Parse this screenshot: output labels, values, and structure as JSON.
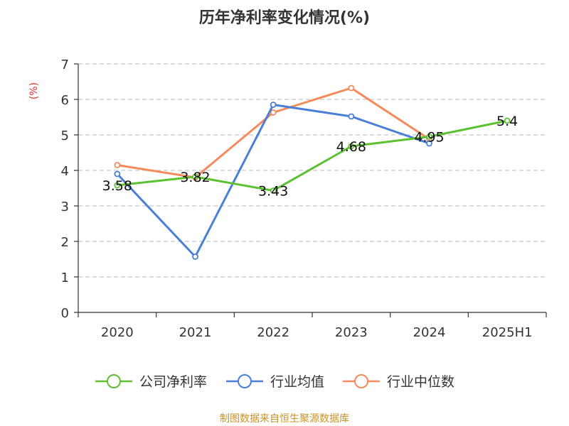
{
  "chart_data": {
    "type": "line",
    "title": "历年净利率变化情况(%)",
    "ylabel": "(%)",
    "xlabel": "",
    "categories": [
      "2020",
      "2021",
      "2022",
      "2023",
      "2024",
      "2025H1"
    ],
    "ylim": [
      0,
      7
    ],
    "yticks": [
      0,
      1,
      2,
      3,
      4,
      5,
      6,
      7
    ],
    "grid": "horizontal dashed",
    "legend_position": "bottom",
    "series": [
      {
        "name": "公司净利率",
        "color": "#5cc130",
        "values": [
          3.58,
          3.82,
          3.43,
          4.68,
          4.95,
          5.4
        ],
        "labels": [
          "3.58",
          "3.82",
          "3.43",
          "4.68",
          "4.95",
          "5.4"
        ]
      },
      {
        "name": "行业均值",
        "color": "#4a7fd9",
        "values": [
          3.9,
          1.57,
          5.85,
          5.52,
          4.76,
          null
        ]
      },
      {
        "name": "行业中位数",
        "color": "#f58a5a",
        "values": [
          4.15,
          3.8,
          5.63,
          6.32,
          4.88,
          null
        ]
      }
    ]
  },
  "footer": {
    "source": "制图数据来自恒生聚源数据库"
  }
}
